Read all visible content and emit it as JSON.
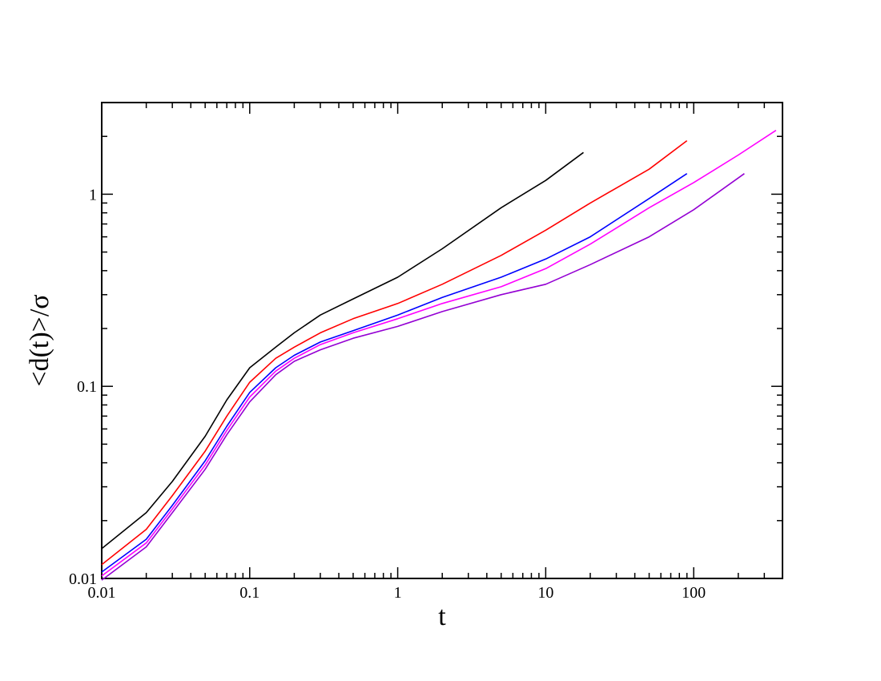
{
  "chart_data": {
    "type": "line",
    "x_label": "t",
    "y_label": "<d(t)>/σ",
    "xscale": "log",
    "yscale": "log",
    "minor_ticks": true,
    "xlim": [
      0.01,
      398
    ],
    "ylim": [
      0.01,
      3
    ],
    "xticks": [
      0.01,
      0.1,
      1,
      10,
      100
    ],
    "yticks": [
      0.01,
      0.1,
      1
    ],
    "series": [
      {
        "color": "#000000",
        "x": [
          0.01,
          0.02,
          0.03,
          0.05,
          0.07,
          0.1,
          0.15,
          0.2,
          0.3,
          0.5,
          1,
          2,
          5,
          10,
          18
        ],
        "values": [
          0.0143,
          0.022,
          0.032,
          0.055,
          0.085,
          0.125,
          0.16,
          0.19,
          0.235,
          0.285,
          0.37,
          0.52,
          0.85,
          1.18,
          1.65
        ]
      },
      {
        "color": "#ff0000",
        "x": [
          0.01,
          0.02,
          0.03,
          0.05,
          0.07,
          0.1,
          0.15,
          0.2,
          0.3,
          0.5,
          1,
          2,
          5,
          10,
          20,
          50,
          90
        ],
        "values": [
          0.0118,
          0.018,
          0.027,
          0.046,
          0.07,
          0.105,
          0.14,
          0.16,
          0.19,
          0.225,
          0.27,
          0.34,
          0.48,
          0.65,
          0.9,
          1.35,
          1.9
        ]
      },
      {
        "color": "#0000ff",
        "x": [
          0.01,
          0.02,
          0.03,
          0.05,
          0.07,
          0.1,
          0.15,
          0.2,
          0.3,
          0.5,
          1,
          2,
          5,
          10,
          20,
          50,
          90
        ],
        "values": [
          0.0108,
          0.016,
          0.024,
          0.041,
          0.062,
          0.093,
          0.125,
          0.145,
          0.17,
          0.195,
          0.235,
          0.29,
          0.37,
          0.46,
          0.6,
          0.95,
          1.28
        ]
      },
      {
        "color": "#ff00ff",
        "x": [
          0.01,
          0.02,
          0.03,
          0.05,
          0.07,
          0.1,
          0.15,
          0.2,
          0.3,
          0.5,
          1,
          2,
          5,
          10,
          20,
          50,
          100,
          200,
          360
        ],
        "values": [
          0.0103,
          0.0153,
          0.023,
          0.039,
          0.059,
          0.088,
          0.12,
          0.14,
          0.165,
          0.19,
          0.225,
          0.27,
          0.33,
          0.41,
          0.55,
          0.85,
          1.15,
          1.6,
          2.15
        ]
      },
      {
        "color": "#9400d3",
        "x": [
          0.01,
          0.02,
          0.03,
          0.05,
          0.07,
          0.1,
          0.15,
          0.2,
          0.3,
          0.5,
          1,
          2,
          5,
          10,
          20,
          50,
          100,
          220
        ],
        "values": [
          0.0098,
          0.0146,
          0.022,
          0.037,
          0.056,
          0.083,
          0.115,
          0.135,
          0.155,
          0.178,
          0.205,
          0.245,
          0.3,
          0.34,
          0.43,
          0.6,
          0.83,
          1.28
        ]
      }
    ]
  }
}
